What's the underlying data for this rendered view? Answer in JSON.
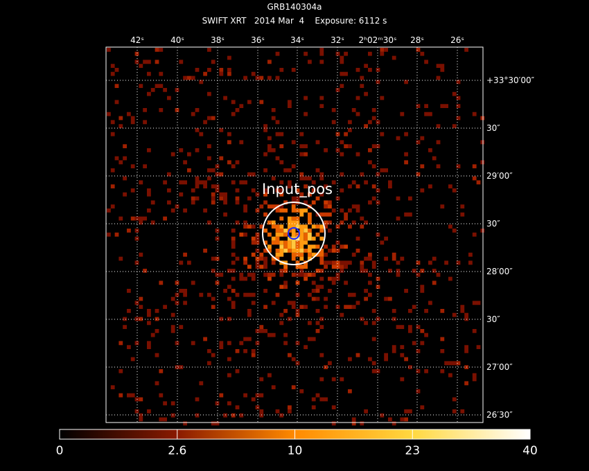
{
  "header": {
    "title": "GRB140304a",
    "subtitle": "SWIFT XRT   2014 Mar  4    Exposure: 6112 s"
  },
  "ra_labels": [
    "42ˢ",
    "40ˢ",
    "38ˢ",
    "36ˢ",
    "34ˢ",
    "32ˢ",
    "2ʰ02ᵐ30ˢ",
    "28ˢ",
    "26ˢ"
  ],
  "dec_labels": [
    "+33°30′00″",
    "30″",
    "29′00″",
    "30″",
    "28′00″",
    "30″",
    "27′00″",
    "26′30″"
  ],
  "region_label": "Input_pos",
  "colorbar_labels": [
    "0",
    "2.6",
    "10",
    "23",
    "40"
  ]
}
